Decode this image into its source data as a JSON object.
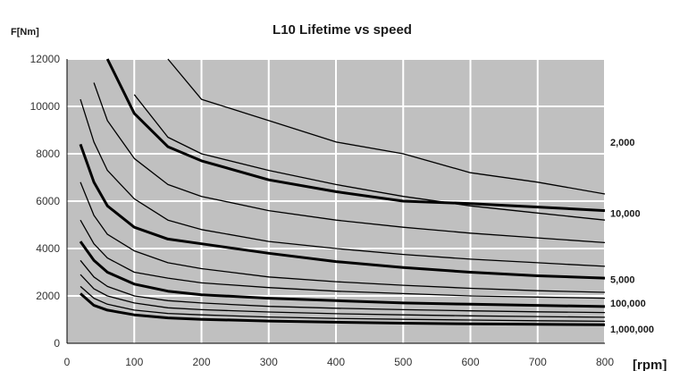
{
  "chart_data": {
    "type": "line",
    "title": "L10 Lifetime vs speed",
    "ylabel": "F[Nm]",
    "xlabel": "[rpm]",
    "xlim": [
      0,
      800
    ],
    "ylim": [
      0,
      12000
    ],
    "xticks": [
      "0",
      "100",
      "200",
      "300",
      "400",
      "500",
      "600",
      "700",
      "800"
    ],
    "yticks": [
      "0",
      "2000",
      "4000",
      "6000",
      "8000",
      "10000",
      "12000"
    ],
    "grid": true,
    "plot_background": "#c0c0c0",
    "x": [
      20,
      40,
      60,
      100,
      150,
      200,
      300,
      400,
      500,
      600,
      700,
      800
    ],
    "series": [
      {
        "name": "2,000",
        "values": [
          null,
          null,
          null,
          null,
          12000,
          10300,
          9400,
          8500,
          8000,
          7200,
          6800,
          6300
        ]
      },
      {
        "values": [
          null,
          null,
          null,
          10500,
          8700,
          8000,
          7300,
          6700,
          6200,
          5800,
          5500,
          5200
        ]
      },
      {
        "name": "10,000",
        "values": [
          null,
          null,
          12000,
          9700,
          8300,
          7700,
          6900,
          6400,
          6000,
          5900,
          5750,
          5600
        ]
      },
      {
        "values": [
          null,
          11000,
          9400,
          7800,
          6700,
          6200,
          5600,
          5200,
          4900,
          4650,
          4450,
          4250
        ]
      },
      {
        "values": [
          10300,
          8500,
          7300,
          6100,
          5200,
          4800,
          4300,
          4000,
          3750,
          3550,
          3400,
          3250
        ]
      },
      {
        "values": [
          8400,
          6800,
          5800,
          4900,
          4400,
          4200,
          3800,
          3450,
          3200,
          3000,
          2850,
          2750
        ]
      },
      {
        "values": [
          6800,
          5400,
          4600,
          3900,
          3400,
          3150,
          2800,
          2600,
          2450,
          2320,
          2220,
          2150
        ]
      },
      {
        "name": "5,000",
        "values": [
          5200,
          4200,
          3600,
          3000,
          2750,
          2550,
          2350,
          2200,
          2100,
          2000,
          1950,
          1900
        ]
      },
      {
        "values": [
          4300,
          3500,
          3000,
          2500,
          2200,
          2050,
          1900,
          1800,
          1700,
          1650,
          1600,
          1550
        ]
      },
      {
        "name": "100,000",
        "values": [
          3500,
          2800,
          2400,
          2000,
          1800,
          1700,
          1560,
          1480,
          1420,
          1370,
          1330,
          1300
        ]
      },
      {
        "values": [
          2900,
          2300,
          2000,
          1700,
          1500,
          1420,
          1320,
          1250,
          1200,
          1160,
          1130,
          1100
        ]
      },
      {
        "values": [
          2400,
          1900,
          1650,
          1400,
          1260,
          1200,
          1110,
          1050,
          1010,
          980,
          950,
          930
        ]
      },
      {
        "name": "1,000,000",
        "values": [
          2100,
          1600,
          1400,
          1200,
          1070,
          1010,
          940,
          890,
          850,
          820,
          800,
          780
        ]
      }
    ],
    "bold_series": [
      2,
      5,
      8,
      12
    ],
    "curve_labels": [
      {
        "text": "2,000",
        "y": 8500
      },
      {
        "text": "10,000",
        "y": 5500
      },
      {
        "text": "5,000",
        "y": 2700
      },
      {
        "text": "100,000",
        "y": 1700
      },
      {
        "text": "1,000,000",
        "y": 600
      }
    ]
  }
}
